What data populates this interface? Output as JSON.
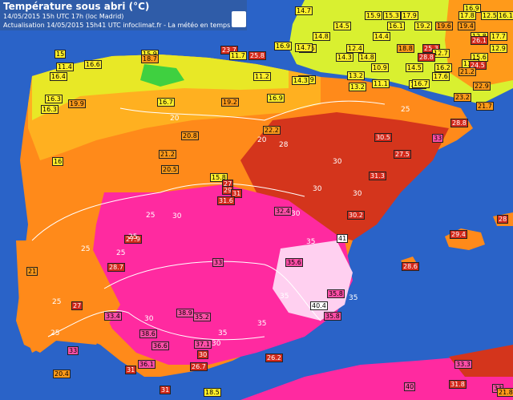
{
  "header": {
    "title": "Température sous abri (°C)",
    "line1": "14/05/2015  15h UTC  17h (loc Madrid)",
    "line2": "Actualisation 14/05/2015 15h41 UTC   infoclimat.fr - La météo en temps réel",
    "logo_icon": "france-map-icon"
  },
  "colors": {
    "sea": "#2a63c8",
    "cool": "#d9f030",
    "warm": "#ff8a1a",
    "hot": "#d4351c",
    "very_hot": "#ff2aa0",
    "extreme": "#ffd0f0"
  },
  "station_labels": [
    {
      "t": "14.7",
      "c": "y"
    },
    {
      "t": "16.9",
      "c": "y"
    },
    {
      "t": "15.9",
      "c": "y"
    },
    {
      "t": "15.3",
      "c": "y"
    },
    {
      "t": "17.9",
      "c": "y"
    },
    {
      "t": "17.8",
      "c": "y"
    },
    {
      "t": "12.5",
      "c": "y"
    },
    {
      "t": "16.1",
      "c": "y"
    },
    {
      "t": "14.5",
      "c": "y"
    },
    {
      "t": "16.1",
      "c": "y"
    },
    {
      "t": "19.2",
      "c": "y"
    },
    {
      "t": "19.6",
      "c": "o"
    },
    {
      "t": "19.4",
      "c": "o"
    },
    {
      "t": "14.8",
      "c": "y"
    },
    {
      "t": "14.4",
      "c": "y"
    },
    {
      "t": "12.8",
      "c": "y"
    },
    {
      "t": "17.7",
      "c": "y"
    },
    {
      "t": "18.8",
      "c": "o"
    },
    {
      "t": "25.3",
      "c": "r"
    },
    {
      "t": "26.1",
      "c": "r"
    },
    {
      "t": "15",
      "c": "y"
    },
    {
      "t": "15.9",
      "c": "y"
    },
    {
      "t": "16.9",
      "c": "y"
    },
    {
      "t": "14.5",
      "c": "y"
    },
    {
      "t": "12.4",
      "c": "y"
    },
    {
      "t": "12.9",
      "c": "y"
    },
    {
      "t": "12.7",
      "c": "y"
    },
    {
      "t": "15.6",
      "c": "y"
    },
    {
      "t": "11.4",
      "c": "y"
    },
    {
      "t": "16.6",
      "c": "y"
    },
    {
      "t": "18.7",
      "c": "o"
    },
    {
      "t": "23.7",
      "c": "r"
    },
    {
      "t": "25.8",
      "c": "r"
    },
    {
      "t": "14.7",
      "c": "y"
    },
    {
      "t": "14.3",
      "c": "y"
    },
    {
      "t": "14.8",
      "c": "y"
    },
    {
      "t": "11.7",
      "c": "y"
    },
    {
      "t": "11.7",
      "c": "y"
    },
    {
      "t": "10.9",
      "c": "y"
    },
    {
      "t": "14.5",
      "c": "y"
    },
    {
      "t": "16.2",
      "c": "y"
    },
    {
      "t": "24.5",
      "c": "r"
    },
    {
      "t": "28.8",
      "c": "r"
    },
    {
      "t": "16.4",
      "c": "y"
    },
    {
      "t": "15.9",
      "c": "y"
    },
    {
      "t": "13.2",
      "c": "y"
    },
    {
      "t": "12.4",
      "c": "y"
    },
    {
      "t": "17.6",
      "c": "y"
    },
    {
      "t": "21.2",
      "c": "o"
    },
    {
      "t": "16.3",
      "c": "y"
    },
    {
      "t": "11.2",
      "c": "y"
    },
    {
      "t": "14.3",
      "c": "y"
    },
    {
      "t": "13.2",
      "c": "y"
    },
    {
      "t": "11.1",
      "c": "y"
    },
    {
      "t": "16.7",
      "c": "y"
    },
    {
      "t": "22.9",
      "c": "o"
    },
    {
      "t": "19.9",
      "c": "o"
    },
    {
      "t": "16.7",
      "c": "y"
    },
    {
      "t": "19.2",
      "c": "o"
    },
    {
      "t": "16.9",
      "c": "y"
    },
    {
      "t": "21.7",
      "c": "o"
    },
    {
      "t": "23.2",
      "c": "o"
    },
    {
      "t": "16.3",
      "c": "y"
    },
    {
      "t": "28.8",
      "c": "r"
    },
    {
      "t": "22.2",
      "c": "o"
    },
    {
      "t": "20.8",
      "c": "o"
    },
    {
      "t": "30.5",
      "c": "r"
    },
    {
      "t": "33",
      "c": "p"
    },
    {
      "t": "16",
      "c": "y"
    },
    {
      "t": "21.2",
      "c": "o"
    },
    {
      "t": "27.5",
      "c": "r"
    },
    {
      "t": "20.5",
      "c": "o"
    },
    {
      "t": "15.8",
      "c": "y"
    },
    {
      "t": "27",
      "c": "r"
    },
    {
      "t": "29",
      "c": "r"
    },
    {
      "t": "31.3",
      "c": "r"
    },
    {
      "t": "31",
      "c": "r"
    },
    {
      "t": "31.6",
      "c": "r"
    },
    {
      "t": "32.4",
      "c": "p"
    },
    {
      "t": "30.2",
      "c": "r"
    },
    {
      "t": "27.9",
      "c": "r"
    },
    {
      "t": "29.4",
      "c": "r"
    },
    {
      "t": "28",
      "c": "r"
    },
    {
      "t": "41",
      "c": "w"
    },
    {
      "t": "28.7",
      "c": "r"
    },
    {
      "t": "33",
      "c": "p"
    },
    {
      "t": "35.6",
      "c": "p"
    },
    {
      "t": "28.6",
      "c": "r"
    },
    {
      "t": "21",
      "c": "o"
    },
    {
      "t": "27",
      "c": "r"
    },
    {
      "t": "40.4",
      "c": "w"
    },
    {
      "t": "35.8",
      "c": "p"
    },
    {
      "t": "38.9",
      "c": "p"
    },
    {
      "t": "35.2",
      "c": "p"
    },
    {
      "t": "33.4",
      "c": "p"
    },
    {
      "t": "38.6",
      "c": "p"
    },
    {
      "t": "35.8",
      "c": "p"
    },
    {
      "t": "36.6",
      "c": "p"
    },
    {
      "t": "37.1",
      "c": "p"
    },
    {
      "t": "33",
      "c": "p"
    },
    {
      "t": "30",
      "c": "r"
    },
    {
      "t": "26.2",
      "c": "r"
    },
    {
      "t": "36.1",
      "c": "p"
    },
    {
      "t": "31",
      "c": "r"
    },
    {
      "t": "26.7",
      "c": "r"
    },
    {
      "t": "33.3",
      "c": "p"
    },
    {
      "t": "20.4",
      "c": "o"
    },
    {
      "t": "40",
      "c": "p"
    },
    {
      "t": "31.8",
      "c": "r"
    },
    {
      "t": "33",
      "c": "p"
    },
    {
      "t": "31",
      "c": "r"
    },
    {
      "t": "18.5",
      "c": "y"
    },
    {
      "t": "21.8",
      "c": "o"
    }
  ],
  "isotherm_labels": [
    "20",
    "20",
    "25",
    "25",
    "25",
    "25",
    "28",
    "30",
    "30",
    "30",
    "30",
    "30",
    "30",
    "30",
    "35",
    "35",
    "35",
    "35",
    "35",
    "25",
    "25",
    "25"
  ]
}
